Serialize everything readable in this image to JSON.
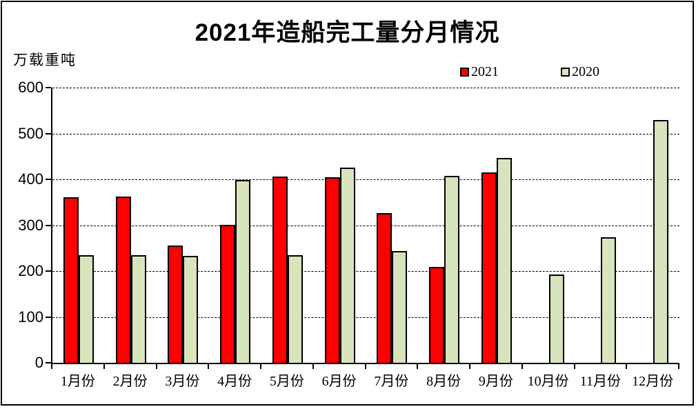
{
  "window": {
    "background_color": "#FFFFFF",
    "frame_border_color": "#000000"
  },
  "chart_data": {
    "type": "bar",
    "title": "2021年造船完工量分月情况",
    "ylabel": "万载重吨",
    "xlabel": "",
    "categories": [
      "1月份",
      "2月份",
      "3月份",
      "4月份",
      "5月份",
      "6月份",
      "7月份",
      "8月份",
      "9月份",
      "10月份",
      "11月份",
      "12月份"
    ],
    "series": [
      {
        "name": "2021",
        "color": "#FF0000",
        "values": [
          361,
          363,
          255,
          301,
          406,
          405,
          327,
          209,
          415,
          null,
          null,
          null
        ]
      },
      {
        "name": "2020",
        "color": "#D8E4BC",
        "values": [
          234,
          235,
          233,
          399,
          235,
          426,
          244,
          408,
          447,
          193,
          273,
          529
        ]
      }
    ],
    "ylim": [
      0,
      600
    ],
    "ytick_interval": 100,
    "yticks": [
      "0",
      "100",
      "200",
      "300",
      "400",
      "500",
      "600"
    ],
    "grid": "horizontal-dashed",
    "legend_position": "top-right",
    "bar_border_color": "#000000"
  }
}
